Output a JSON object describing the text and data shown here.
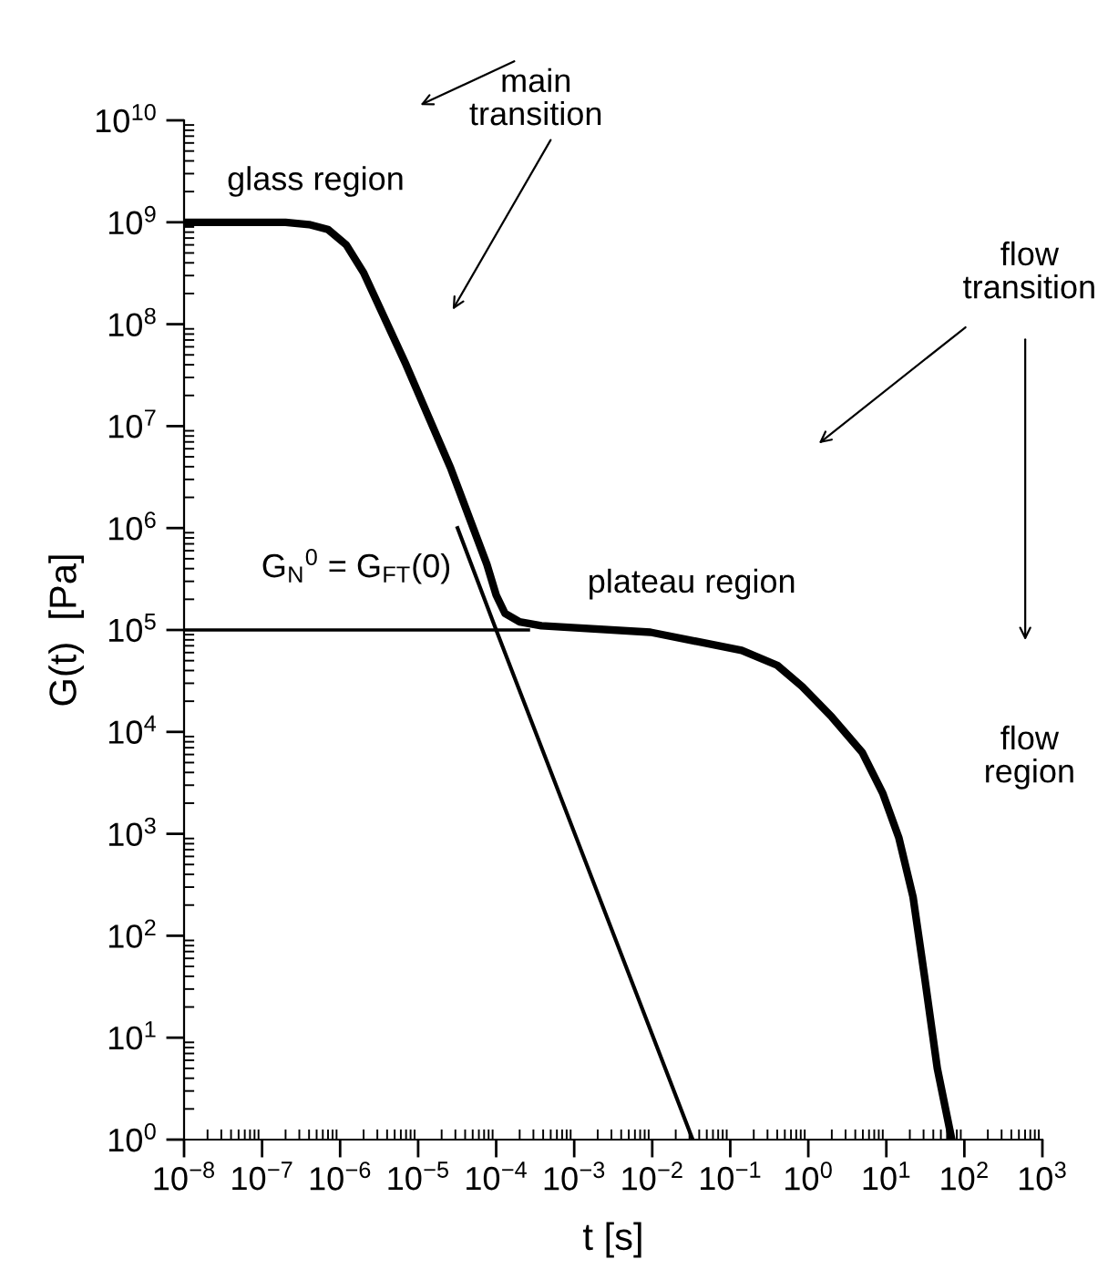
{
  "chart_data": {
    "type": "line",
    "xlabel": "t [s]",
    "ylabel": "G(t)  [Pa]",
    "log": "xy",
    "xlim": [
      1e-08,
      1000
    ],
    "ylim": [
      1,
      10000000000.0
    ],
    "xticks": [
      {
        "value": 1e-08,
        "label": "10$^{−8}$"
      },
      {
        "value": 1e-07,
        "label": "10$^{−7}$"
      },
      {
        "value": 1e-06,
        "label": "10$^{−6}$"
      },
      {
        "value": 1e-05,
        "label": "10$^{−5}$"
      },
      {
        "value": 0.0001,
        "label": "10$^{−4}$"
      },
      {
        "value": 0.001,
        "label": "10$^{−3}$"
      },
      {
        "value": 0.01,
        "label": "10$^{−2}$"
      },
      {
        "value": 0.1,
        "label": "10$^{−1}$"
      },
      {
        "value": 1,
        "label": "10$^{0}$"
      },
      {
        "value": 10,
        "label": "10$^{1}$"
      },
      {
        "value": 100,
        "label": "10$^{2}$"
      },
      {
        "value": 1000,
        "label": "10$^{3}$"
      }
    ],
    "yticks": [
      {
        "value": 1,
        "label": "10$^{0}$"
      },
      {
        "value": 10,
        "label": "10$^{1}$"
      },
      {
        "value": 100,
        "label": "10$^{2}$"
      },
      {
        "value": 1000,
        "label": "10$^{3}$"
      },
      {
        "value": 10000,
        "label": "10$^{4}$"
      },
      {
        "value": 100000,
        "label": "10$^{5}$"
      },
      {
        "value": 1000000,
        "label": "10$^{6}$"
      },
      {
        "value": 10000000,
        "label": "10$^{7}$"
      },
      {
        "value": 100000000,
        "label": "10$^{8}$"
      },
      {
        "value": 1000000000,
        "label": "10$^{9}$"
      },
      {
        "value": 10000000000,
        "label": "10$^{10}$"
      }
    ],
    "marker": "none",
    "line_style": "solid",
    "series": [
      {
        "color": "#000000",
        "x": [
          1e-08,
          2e-07,
          4e-07,
          7e-07,
          1.2e-06,
          2e-06,
          7e-06,
          2.6e-05,
          7.6e-05,
          0.0001,
          0.00013,
          0.0002,
          0.00038,
          0.0095,
          0.14,
          0.4,
          0.83,
          2,
          4.9,
          9,
          14.5,
          22,
          31,
          45,
          69
        ],
        "values": [
          1000000000.0,
          1000000000.0,
          950000000.0,
          850000000.0,
          600000000.0,
          320000000.0,
          40000000.0,
          3900000.0,
          440000.0,
          220000.0,
          145000.0,
          120000.0,
          110000.0,
          95000.0,
          63000.0,
          45000.0,
          28000.0,
          14000.0,
          6300,
          2500,
          910,
          240,
          39,
          5,
          1
        ]
      },
      {
        "color": "#000000",
        "x": [
          3.2e-05,
          0.0001,
          0.033
        ],
        "values": [
          1000000.0,
          100000.0,
          1
        ]
      },
      {
        "color": "#000000",
        "x": [
          1e-08,
          0.00026
        ],
        "values": [
          100000.0,
          100000.0
        ]
      }
    ],
    "annotations": [
      "main\ntransition",
      "flow\ntransition",
      "glass region",
      "plateau region",
      "flow\nregion",
      "G$_{N}$$^{0}$ = G$_{FT}$(0)"
    ]
  }
}
